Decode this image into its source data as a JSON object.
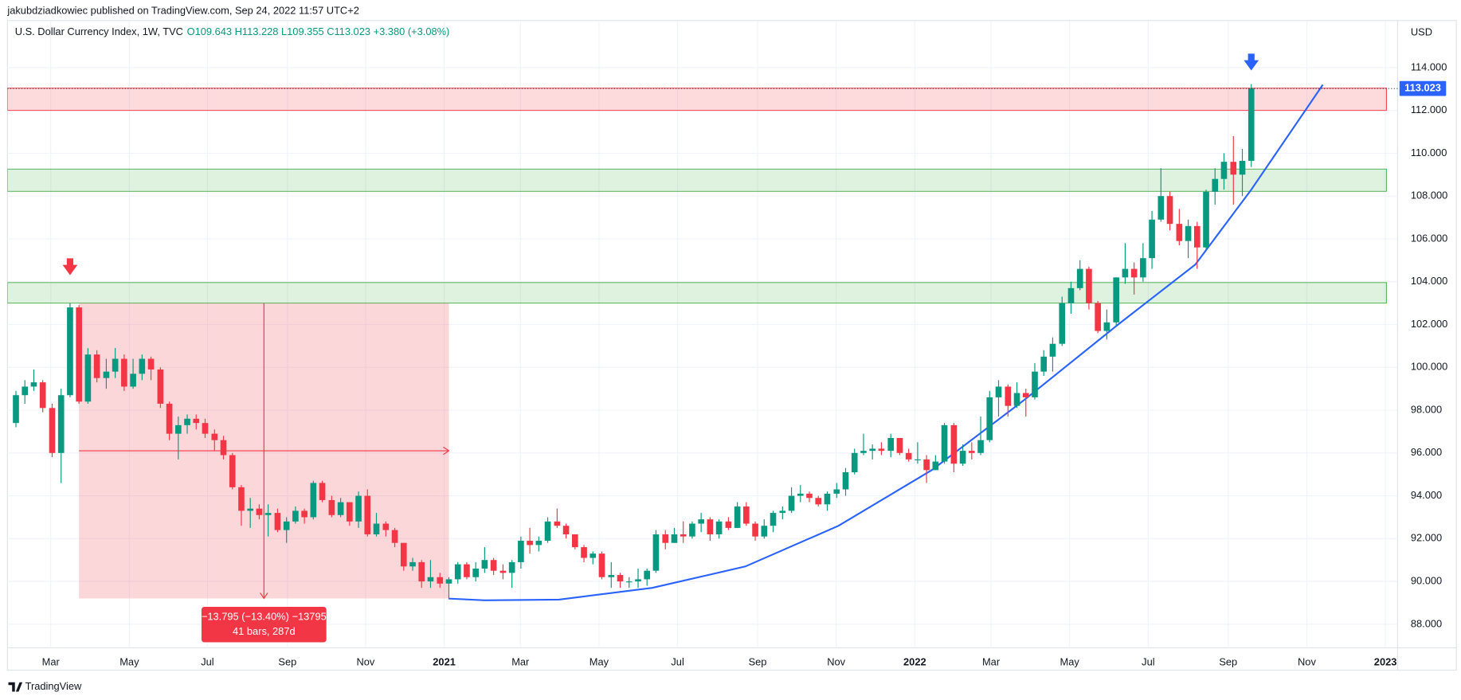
{
  "header": {
    "publisher": "jakubdziadkowiec published on TradingView.com, Sep 24, 2022 11:57 UTC+2"
  },
  "chart_data": {
    "type": "candlestick",
    "title": "U.S. Dollar Currency Index, 1W, TVC",
    "subtitle": "O109.643 H113.228 L109.355 C113.023 +3.380 (+3.08%)",
    "y_axis_label": "USD",
    "x": [
      2020.09,
      2020.109,
      2020.128,
      2020.147,
      2020.167,
      2020.186,
      2020.205,
      2020.224,
      2020.243,
      2020.262,
      2020.282,
      2020.301,
      2020.32,
      2020.339,
      2020.358,
      2020.377,
      2020.397,
      2020.416,
      2020.435,
      2020.454,
      2020.473,
      2020.492,
      2020.512,
      2020.531,
      2020.55,
      2020.569,
      2020.588,
      2020.607,
      2020.626,
      2020.646,
      2020.665,
      2020.684,
      2020.703,
      2020.722,
      2020.741,
      2020.761,
      2020.78,
      2020.799,
      2020.818,
      2020.837,
      2020.856,
      2020.876,
      2020.895,
      2020.914,
      2020.933,
      2020.952,
      2020.971,
      2020.991,
      2021.01,
      2021.029,
      2021.048,
      2021.067,
      2021.086,
      2021.105,
      2021.125,
      2021.144,
      2021.163,
      2021.182,
      2021.201,
      2021.22,
      2021.24,
      2021.259,
      2021.278,
      2021.297,
      2021.316,
      2021.335,
      2021.355,
      2021.374,
      2021.393,
      2021.412,
      2021.431,
      2021.45,
      2021.47,
      2021.489,
      2021.508,
      2021.527,
      2021.546,
      2021.565,
      2021.584,
      2021.604,
      2021.623,
      2021.642,
      2021.661,
      2021.68,
      2021.699,
      2021.719,
      2021.738,
      2021.757,
      2021.776,
      2021.795,
      2021.814,
      2021.834,
      2021.853,
      2021.872,
      2021.891,
      2021.91,
      2021.929,
      2021.949,
      2021.968,
      2021.987,
      2022.006,
      2022.025,
      2022.044,
      2022.063,
      2022.083,
      2022.102,
      2022.121,
      2022.14,
      2022.159,
      2022.178,
      2022.198,
      2022.217,
      2022.236,
      2022.255,
      2022.274,
      2022.293,
      2022.313,
      2022.332,
      2022.351,
      2022.37,
      2022.389,
      2022.408,
      2022.428,
      2022.447,
      2022.466,
      2022.485,
      2022.504,
      2022.523,
      2022.542,
      2022.562,
      2022.581,
      2022.6,
      2022.619,
      2022.638,
      2022.657,
      2022.677,
      2022.696,
      2022.715
    ],
    "open": [
      97.4,
      98.7,
      99.1,
      99.3,
      98.1,
      96.0,
      98.7,
      102.8,
      98.4,
      100.6,
      99.5,
      99.8,
      100.4,
      99.1,
      99.7,
      100.4,
      99.9,
      98.3,
      96.9,
      97.3,
      97.6,
      97.4,
      96.9,
      96.6,
      95.9,
      94.4,
      93.3,
      93.4,
      93.1,
      93.2,
      92.4,
      92.8,
      93.3,
      93.0,
      94.6,
      93.8,
      93.1,
      93.7,
      92.8,
      94.0,
      92.2,
      92.7,
      92.4,
      91.8,
      90.7,
      90.9,
      90.0,
      90.2,
      89.9,
      90.1,
      90.8,
      90.2,
      90.6,
      91.0,
      90.5,
      90.4,
      90.9,
      91.9,
      91.7,
      91.9,
      92.8,
      92.6,
      92.2,
      91.6,
      91.1,
      91.3,
      90.2,
      90.3,
      90.0,
      90.0,
      90.1,
      90.5,
      92.2,
      91.8,
      92.2,
      92.1,
      92.7,
      92.9,
      92.2,
      92.8,
      92.5,
      93.5,
      92.7,
      92.1,
      92.6,
      93.2,
      93.3,
      94.0,
      94.1,
      93.9,
      93.6,
      94.1,
      94.3,
      95.1,
      96.0,
      96.1,
      96.2,
      96.1,
      96.7,
      96.0,
      95.7,
      95.7,
      95.2,
      95.6,
      97.3,
      95.5,
      96.1,
      96.0,
      96.6,
      98.6,
      99.1,
      98.2,
      98.8,
      98.6,
      99.8,
      100.5,
      101.1,
      103.0,
      103.7,
      104.6,
      103.0,
      101.7,
      102.1,
      104.2,
      104.6,
      104.2,
      105.1,
      106.9,
      108.0,
      106.7,
      105.9,
      106.6,
      105.6,
      108.2,
      108.8,
      109.6,
      109.0,
      109.643
    ],
    "high": [
      98.9,
      99.4,
      99.9,
      99.4,
      98.3,
      99.0,
      103.0,
      102.9,
      100.9,
      100.8,
      100.4,
      100.9,
      100.6,
      100.4,
      100.6,
      100.5,
      100.0,
      98.4,
      97.7,
      97.8,
      97.8,
      97.6,
      97.1,
      96.8,
      96.0,
      94.5,
      93.9,
      93.6,
      93.6,
      93.4,
      93.0,
      93.5,
      93.4,
      94.7,
      94.7,
      94.0,
      93.9,
      93.7,
      94.2,
      94.3,
      93.2,
      92.8,
      92.5,
      91.8,
      91.1,
      91.0,
      91.0,
      90.4,
      90.2,
      90.9,
      90.9,
      90.9,
      91.6,
      91.1,
      90.8,
      91.0,
      92.1,
      92.5,
      92.1,
      93.0,
      93.4,
      92.7,
      92.2,
      91.7,
      91.4,
      91.4,
      90.9,
      90.4,
      90.2,
      90.6,
      90.6,
      92.4,
      92.4,
      92.5,
      92.8,
      92.8,
      93.2,
      93.0,
      92.9,
      93.0,
      93.7,
      93.7,
      92.8,
      92.9,
      93.3,
      93.5,
      94.4,
      94.5,
      94.2,
      94.0,
      94.2,
      94.6,
      95.3,
      96.2,
      96.9,
      96.4,
      96.5,
      96.9,
      96.7,
      96.2,
      96.5,
      95.9,
      95.9,
      97.4,
      97.4,
      96.4,
      96.5,
      97.7,
      98.9,
      99.4,
      99.2,
      99.3,
      99.0,
      100.2,
      100.8,
      101.4,
      103.3,
      104.0,
      105.0,
      104.7,
      103.1,
      102.7,
      104.2,
      105.8,
      104.9,
      105.8,
      107.3,
      109.3,
      108.2,
      107.4,
      106.9,
      106.8,
      108.3,
      109.3,
      110.0,
      110.8,
      110.2,
      113.228
    ],
    "low": [
      97.2,
      98.3,
      98.9,
      97.9,
      95.8,
      94.6,
      98.6,
      98.3,
      98.3,
      99.3,
      99.0,
      99.5,
      98.9,
      99.0,
      99.4,
      99.4,
      98.1,
      96.6,
      95.7,
      96.9,
      97.1,
      96.7,
      96.1,
      95.7,
      94.3,
      92.6,
      92.5,
      92.9,
      92.1,
      92.3,
      91.8,
      92.7,
      92.7,
      92.9,
      93.7,
      93.0,
      93.0,
      92.6,
      92.5,
      92.1,
      92.1,
      92.1,
      91.6,
      90.5,
      90.5,
      89.7,
      89.7,
      89.7,
      89.2,
      89.9,
      90.1,
      90.0,
      90.4,
      90.3,
      90.1,
      89.7,
      90.6,
      91.3,
      91.4,
      91.8,
      92.5,
      92.0,
      91.5,
      90.9,
      90.8,
      90.1,
      89.7,
      89.7,
      89.7,
      89.7,
      89.8,
      90.4,
      91.5,
      91.8,
      91.8,
      92.0,
      92.3,
      91.9,
      92.0,
      92.4,
      92.5,
      92.6,
      91.9,
      92.0,
      92.3,
      92.9,
      93.2,
      93.7,
      93.7,
      93.5,
      93.3,
      93.9,
      94.0,
      95.0,
      95.9,
      95.7,
      95.9,
      95.8,
      95.9,
      95.6,
      95.5,
      94.6,
      95.2,
      95.5,
      95.1,
      95.4,
      95.7,
      95.9,
      96.5,
      97.7,
      97.7,
      98.1,
      97.7,
      98.5,
      99.6,
      99.8,
      101.0,
      102.5,
      103.6,
      102.7,
      101.6,
      101.3,
      101.9,
      103.9,
      103.4,
      104.0,
      104.6,
      106.8,
      106.4,
      105.7,
      105.1,
      104.6,
      105.5,
      107.6,
      108.3,
      107.6,
      108.0,
      109.355
    ],
    "close": [
      98.7,
      99.1,
      99.3,
      98.1,
      96.0,
      98.7,
      102.8,
      98.4,
      100.6,
      99.5,
      99.8,
      100.4,
      99.1,
      99.7,
      100.4,
      99.9,
      98.3,
      96.9,
      97.3,
      97.6,
      97.4,
      96.9,
      96.6,
      95.9,
      94.4,
      93.3,
      93.4,
      93.1,
      93.2,
      92.4,
      92.8,
      93.3,
      93.0,
      94.6,
      93.8,
      93.1,
      93.7,
      92.8,
      94.0,
      92.2,
      92.7,
      92.4,
      91.8,
      90.7,
      90.9,
      90.0,
      90.2,
      89.9,
      90.1,
      90.8,
      90.2,
      90.6,
      91.0,
      90.5,
      90.4,
      90.9,
      91.9,
      91.7,
      91.9,
      92.8,
      92.6,
      92.2,
      91.6,
      91.1,
      91.3,
      90.2,
      90.3,
      90.0,
      90.0,
      90.1,
      90.5,
      92.2,
      91.8,
      92.2,
      92.1,
      92.7,
      92.9,
      92.2,
      92.8,
      92.5,
      93.5,
      92.7,
      92.1,
      92.6,
      93.2,
      93.3,
      94.0,
      94.1,
      93.9,
      93.6,
      94.1,
      94.3,
      95.1,
      96.0,
      96.1,
      96.2,
      96.1,
      96.7,
      96.0,
      95.7,
      95.7,
      95.2,
      95.6,
      97.3,
      95.5,
      96.1,
      96.0,
      96.6,
      98.6,
      99.1,
      98.2,
      98.8,
      98.6,
      99.8,
      100.5,
      101.1,
      103.0,
      103.7,
      104.6,
      103.0,
      101.7,
      102.1,
      104.2,
      104.6,
      104.2,
      105.1,
      106.9,
      108.0,
      106.7,
      105.9,
      106.6,
      105.6,
      108.2,
      108.8,
      109.6,
      109.0,
      109.643,
      113.023
    ],
    "up_color": "#089981",
    "down_color": "#f23645",
    "last_value_label": "113.023",
    "last_value_color": "#2962ff",
    "xlim": [
      2020.072,
      2023.026
    ],
    "ylim": [
      86.9,
      116.2
    ],
    "xticks": [
      {
        "value": 2020.164,
        "label": "Mar"
      },
      {
        "value": 2020.331,
        "label": "May"
      },
      {
        "value": 2020.497,
        "label": "Jul"
      },
      {
        "value": 2020.667,
        "label": "Sep"
      },
      {
        "value": 2020.833,
        "label": "Nov"
      },
      2021,
      {
        "value": 2021.162,
        "label": "Mar"
      },
      {
        "value": 2021.329,
        "label": "May"
      },
      {
        "value": 2021.496,
        "label": "Jul"
      },
      {
        "value": 2021.666,
        "label": "Sep"
      },
      {
        "value": 2021.833,
        "label": "Nov"
      },
      2022,
      {
        "value": 2022.162,
        "label": "Mar"
      },
      {
        "value": 2022.329,
        "label": "May"
      },
      {
        "value": 2022.496,
        "label": "Jul"
      },
      {
        "value": 2022.666,
        "label": "Sep"
      },
      {
        "value": 2022.833,
        "label": "Nov"
      },
      2023
    ],
    "yticks": [
      {
        "value": 88,
        "label": "88.000"
      },
      {
        "value": 90,
        "label": "90.000"
      },
      {
        "value": 92,
        "label": "92.000"
      },
      {
        "value": 94,
        "label": "94.000"
      },
      {
        "value": 96,
        "label": "96.000"
      },
      {
        "value": 98,
        "label": "98.000"
      },
      {
        "value": 100,
        "label": "100.000"
      },
      {
        "value": 102,
        "label": "102.000"
      },
      {
        "value": 104,
        "label": "104.000"
      },
      {
        "value": 106,
        "label": "106.000"
      },
      {
        "value": 108,
        "label": "108.000"
      },
      {
        "value": 110,
        "label": "110.000"
      },
      {
        "value": 112,
        "label": "112.000"
      },
      {
        "value": 114,
        "label": "114.000"
      }
    ],
    "grid": true,
    "zones": [
      {
        "low": 112.0,
        "high": 113.04,
        "color": "#f23645"
      },
      {
        "low": 108.22,
        "high": 109.26,
        "color": "#4caf50"
      },
      {
        "low": 103.0,
        "high": 103.96,
        "color": "#4caf50"
      }
    ],
    "measure": {
      "x0": 2020.224,
      "x1": 2021.01,
      "top": 103.0,
      "bottom": 89.205,
      "label": "−13.795 (−13.40%) −13795",
      "sublabel": "41 bars, 287d",
      "color": "#f23645"
    },
    "curve": {
      "color": "#2962ff",
      "x": [
        2021.009,
        2021.086,
        2021.244,
        2021.442,
        2021.64,
        2021.838,
        2022.036,
        2022.234,
        2022.432,
        2022.596,
        2022.715,
        2022.867
      ],
      "y": [
        89.2,
        89.12,
        89.15,
        89.7,
        90.7,
        92.6,
        95.2,
        98.5,
        102.0,
        104.8,
        108.3,
        113.2
      ]
    },
    "markers": [
      {
        "x": 2020.205,
        "y": 104.7,
        "color": "#f23645"
      },
      {
        "x": 2022.715,
        "y": 114.26,
        "color": "#2962ff"
      }
    ]
  },
  "footer": {
    "brand": "TradingView"
  }
}
